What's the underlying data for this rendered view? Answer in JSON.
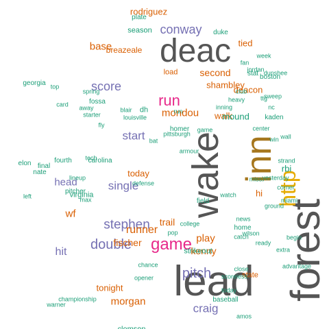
{
  "colors": {
    "teal": "#1b9e77",
    "gray": "#555555",
    "orange": "#d95f02",
    "purple": "#7570b3",
    "pink": "#e7298a",
    "gold": "#e6ab02",
    "brown": "#a6761d"
  },
  "words": [
    {
      "text": "deac",
      "color": "gray"
    },
    {
      "text": "wake",
      "color": "gray"
    },
    {
      "text": "lead",
      "color": "gray"
    },
    {
      "text": "forest",
      "color": "gray"
    },
    {
      "text": "inn",
      "color": "brown"
    },
    {
      "text": "http",
      "color": "gold"
    },
    {
      "text": "run",
      "color": "pink"
    },
    {
      "text": "game",
      "color": "pink"
    },
    {
      "text": "conway",
      "color": "purple"
    },
    {
      "text": "score",
      "color": "purple"
    },
    {
      "text": "pitch",
      "color": "purple"
    },
    {
      "text": "stephen",
      "color": "purple"
    },
    {
      "text": "double",
      "color": "purple"
    },
    {
      "text": "single",
      "color": "purple"
    },
    {
      "text": "hit",
      "color": "purple"
    },
    {
      "text": "head",
      "color": "purple"
    },
    {
      "text": "craig",
      "color": "purple"
    },
    {
      "text": "start",
      "color": "purple"
    },
    {
      "text": "mondou",
      "color": "orange"
    },
    {
      "text": "base",
      "color": "orange"
    },
    {
      "text": "runner",
      "color": "orange"
    },
    {
      "text": "morgan",
      "color": "orange"
    },
    {
      "text": "kenny",
      "color": "orange"
    },
    {
      "text": "fischer",
      "color": "orange"
    },
    {
      "text": "play",
      "color": "orange"
    },
    {
      "text": "rodriguez",
      "color": "orange"
    },
    {
      "text": "deacon",
      "color": "orange"
    },
    {
      "text": "tonight",
      "color": "orange"
    },
    {
      "text": "breazeale",
      "color": "orange"
    },
    {
      "text": "today",
      "color": "orange"
    },
    {
      "text": "trail",
      "color": "orange"
    },
    {
      "text": "second",
      "color": "orange"
    },
    {
      "text": "shambley",
      "color": "orange"
    },
    {
      "text": "walk",
      "color": "orange"
    },
    {
      "text": "wf",
      "color": "orange"
    },
    {
      "text": "load",
      "color": "orange"
    },
    {
      "text": "tied",
      "color": "orange"
    },
    {
      "text": "hi",
      "color": "orange"
    },
    {
      "text": "state",
      "color": "orange"
    },
    {
      "text": "fossa",
      "color": "teal"
    },
    {
      "text": "mound",
      "color": "teal"
    },
    {
      "text": "rbi",
      "color": "teal"
    },
    {
      "text": "clemson",
      "color": "teal"
    },
    {
      "text": "virginia",
      "color": "teal"
    },
    {
      "text": "strikeout",
      "color": "teal"
    },
    {
      "text": "season",
      "color": "teal"
    },
    {
      "text": "duke",
      "color": "teal"
    },
    {
      "text": "plate",
      "color": "teal"
    },
    {
      "text": "boston",
      "color": "teal"
    },
    {
      "text": "carolina",
      "color": "teal"
    },
    {
      "text": "georgia",
      "color": "teal"
    },
    {
      "text": "baseball",
      "color": "teal"
    },
    {
      "text": "final",
      "color": "teal"
    },
    {
      "text": "fourth",
      "color": "teal"
    },
    {
      "text": "inning",
      "color": "teal"
    },
    {
      "text": "dh",
      "color": "teal"
    },
    {
      "text": "ttg",
      "color": "teal"
    },
    {
      "text": "stat",
      "color": "teal"
    },
    {
      "text": "jordan",
      "color": "teal"
    },
    {
      "text": "nate",
      "color": "teal"
    },
    {
      "text": "pitcher",
      "color": "teal"
    },
    {
      "text": "nc",
      "color": "teal"
    },
    {
      "text": "kaden",
      "color": "teal"
    },
    {
      "text": "homer",
      "color": "teal"
    },
    {
      "text": "center",
      "color": "teal"
    },
    {
      "text": "field",
      "color": "teal"
    },
    {
      "text": "pittsburgh",
      "color": "teal"
    },
    {
      "text": "heavy",
      "color": "teal"
    },
    {
      "text": "scoreless",
      "color": "teal"
    },
    {
      "text": "sweep",
      "color": "teal"
    },
    {
      "text": "elon",
      "color": "teal"
    },
    {
      "text": "away",
      "color": "teal"
    },
    {
      "text": "top",
      "color": "teal"
    },
    {
      "text": "home",
      "color": "teal"
    },
    {
      "text": "catch",
      "color": "teal"
    },
    {
      "text": "card",
      "color": "teal"
    },
    {
      "text": "ground",
      "color": "teal"
    },
    {
      "text": "club",
      "color": "teal"
    },
    {
      "text": "week",
      "color": "teal"
    },
    {
      "text": "miami",
      "color": "teal"
    },
    {
      "text": "college",
      "color": "teal"
    },
    {
      "text": "wall",
      "color": "teal"
    },
    {
      "text": "ready",
      "color": "teal"
    },
    {
      "text": "extra",
      "color": "teal"
    },
    {
      "text": "close",
      "color": "teal"
    },
    {
      "text": "news",
      "color": "teal"
    },
    {
      "text": "run",
      "color": "teal"
    },
    {
      "text": "left",
      "color": "teal"
    },
    {
      "text": "win",
      "color": "teal"
    },
    {
      "text": "defense",
      "color": "teal"
    },
    {
      "text": "chance",
      "color": "teal"
    },
    {
      "text": "game",
      "color": "teal"
    },
    {
      "text": "championship",
      "color": "teal"
    },
    {
      "text": "opener",
      "color": "teal"
    },
    {
      "text": "fan",
      "color": "teal"
    },
    {
      "text": "pop",
      "color": "teal"
    },
    {
      "text": "today",
      "color": "teal"
    },
    {
      "text": "bat",
      "color": "teal"
    },
    {
      "text": "warner",
      "color": "teal"
    },
    {
      "text": "wilson",
      "color": "teal"
    },
    {
      "text": "strand",
      "color": "teal"
    },
    {
      "text": "advantage",
      "color": "teal"
    },
    {
      "text": "corner",
      "color": "teal"
    },
    {
      "text": "blair",
      "color": "teal"
    },
    {
      "text": "fly",
      "color": "teal"
    },
    {
      "text": "armour",
      "color": "teal"
    },
    {
      "text": "spring",
      "color": "teal"
    },
    {
      "text": "tech",
      "color": "teal"
    },
    {
      "text": "lineup",
      "color": "teal"
    },
    {
      "text": "miss",
      "color": "teal"
    },
    {
      "text": "begin",
      "color": "teal"
    },
    {
      "text": "watch",
      "color": "teal"
    },
    {
      "text": "yesterday",
      "color": "teal"
    },
    {
      "text": "louisville",
      "color": "teal"
    },
    {
      "text": "starter",
      "color": "teal"
    },
    {
      "text": "dunshee",
      "color": "teal"
    },
    {
      "text": "amos",
      "color": "teal"
    },
    {
      "text": "max",
      "color": "teal"
    },
    {
      "text": "left",
      "color": "teal"
    }
  ]
}
